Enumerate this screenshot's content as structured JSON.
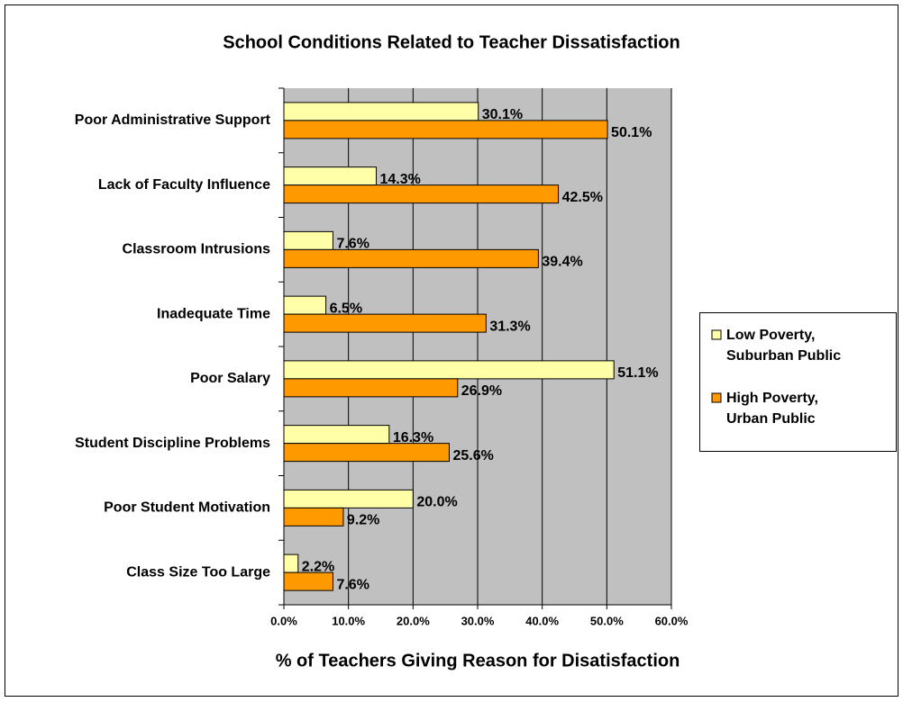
{
  "chart_data": {
    "type": "bar",
    "orientation": "horizontal",
    "title": "School Conditions Related to Teacher Dissatisfaction",
    "xlabel": "% of Teachers Giving Reason for Disatisfaction",
    "categories": [
      "Poor Administrative Support",
      "Lack of Faculty Influence",
      "Classroom Intrusions",
      "Inadequate Time",
      "Poor Salary",
      "Student Discipline Problems",
      "Poor Student Motivation",
      "Class Size Too Large"
    ],
    "series": [
      {
        "name": "Low Poverty, Suburban Public",
        "color": "#ffffa8",
        "values": [
          30.1,
          14.3,
          7.6,
          6.5,
          51.1,
          16.3,
          20.0,
          2.2
        ],
        "value_labels": [
          "30.1%",
          "14.3%",
          "7.6%",
          "6.5%",
          "51.1%",
          "16.3%",
          "20.0%",
          "2.2%"
        ]
      },
      {
        "name": "High Poverty, Urban Public",
        "color": "#ff9900",
        "values": [
          50.1,
          42.5,
          39.4,
          31.3,
          26.9,
          25.6,
          9.2,
          7.6
        ],
        "value_labels": [
          "50.1%",
          "42.5%",
          "39.4%",
          "31.3%",
          "26.9%",
          "25.6%",
          "9.2%",
          "7.6%"
        ]
      }
    ],
    "xlim": [
      0,
      60
    ],
    "xticks": [
      {
        "value": 0,
        "label": "0.0%"
      },
      {
        "value": 10,
        "label": "10.0%"
      },
      {
        "value": 20,
        "label": "20.0%"
      },
      {
        "value": 30,
        "label": "30.0%"
      },
      {
        "value": 40,
        "label": "40.0%"
      },
      {
        "value": 50,
        "label": "50.0%"
      },
      {
        "value": 60,
        "label": "60.0%"
      }
    ],
    "grid": true,
    "legend": "right"
  }
}
